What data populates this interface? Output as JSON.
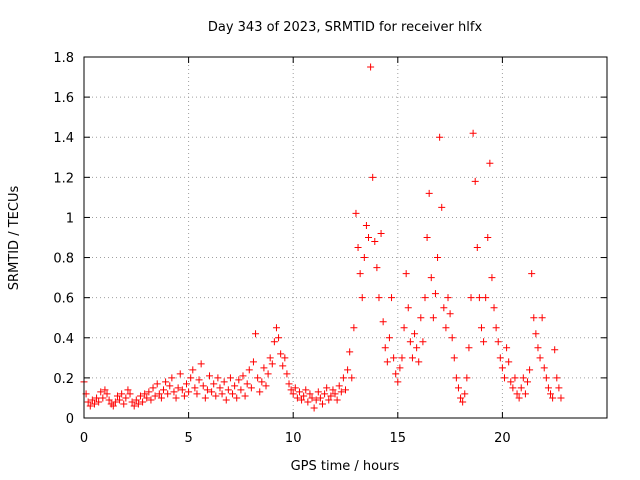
{
  "chart_data": {
    "type": "scatter",
    "title": "Day 343 of 2023, SRMTID for receiver hlfx",
    "xlabel": "GPS time / hours",
    "ylabel": "SRMTID / TECUs",
    "xlim": [
      0,
      25
    ],
    "ylim": [
      0,
      1.8
    ],
    "xticks": [
      0,
      5,
      10,
      15,
      20
    ],
    "xtick_labels": [
      "0",
      "5",
      "10",
      "15",
      "20"
    ],
    "yticks": [
      0,
      0.2,
      0.4,
      0.6,
      0.8,
      1,
      1.2,
      1.4,
      1.6,
      1.8
    ],
    "ytick_labels": [
      "0",
      "0.2",
      "0.4",
      "0.6",
      "0.8",
      "1",
      "1.2",
      "1.4",
      "1.6",
      "1.8"
    ],
    "grid": true,
    "marker": "+",
    "color": "#ff0000",
    "series": [
      {
        "name": "SRMTID",
        "points": [
          [
            0.0,
            0.18
          ],
          [
            0.1,
            0.12
          ],
          [
            0.2,
            0.08
          ],
          [
            0.3,
            0.06
          ],
          [
            0.4,
            0.09
          ],
          [
            0.5,
            0.07
          ],
          [
            0.6,
            0.1
          ],
          [
            0.7,
            0.08
          ],
          [
            0.8,
            0.13
          ],
          [
            0.9,
            0.1
          ],
          [
            1.0,
            0.14
          ],
          [
            1.1,
            0.12
          ],
          [
            1.2,
            0.09
          ],
          [
            1.3,
            0.07
          ],
          [
            1.4,
            0.06
          ],
          [
            1.5,
            0.08
          ],
          [
            1.6,
            0.11
          ],
          [
            1.7,
            0.09
          ],
          [
            1.8,
            0.12
          ],
          [
            1.9,
            0.07
          ],
          [
            2.0,
            0.1
          ],
          [
            2.1,
            0.14
          ],
          [
            2.2,
            0.12
          ],
          [
            2.3,
            0.08
          ],
          [
            2.4,
            0.06
          ],
          [
            2.5,
            0.09
          ],
          [
            2.6,
            0.07
          ],
          [
            2.7,
            0.11
          ],
          [
            2.8,
            0.08
          ],
          [
            2.9,
            0.12
          ],
          [
            3.0,
            0.1
          ],
          [
            3.1,
            0.13
          ],
          [
            3.2,
            0.09
          ],
          [
            3.3,
            0.15
          ],
          [
            3.4,
            0.11
          ],
          [
            3.5,
            0.17
          ],
          [
            3.6,
            0.12
          ],
          [
            3.7,
            0.1
          ],
          [
            3.8,
            0.14
          ],
          [
            3.9,
            0.18
          ],
          [
            4.0,
            0.12
          ],
          [
            4.1,
            0.16
          ],
          [
            4.2,
            0.2
          ],
          [
            4.3,
            0.13
          ],
          [
            4.4,
            0.1
          ],
          [
            4.5,
            0.15
          ],
          [
            4.6,
            0.22
          ],
          [
            4.7,
            0.14
          ],
          [
            4.8,
            0.11
          ],
          [
            4.9,
            0.17
          ],
          [
            5.0,
            0.13
          ],
          [
            5.1,
            0.2
          ],
          [
            5.2,
            0.24
          ],
          [
            5.3,
            0.15
          ],
          [
            5.4,
            0.12
          ],
          [
            5.5,
            0.19
          ],
          [
            5.6,
            0.27
          ],
          [
            5.7,
            0.16
          ],
          [
            5.8,
            0.1
          ],
          [
            5.9,
            0.14
          ],
          [
            6.0,
            0.21
          ],
          [
            6.1,
            0.13
          ],
          [
            6.2,
            0.17
          ],
          [
            6.3,
            0.11
          ],
          [
            6.4,
            0.2
          ],
          [
            6.5,
            0.15
          ],
          [
            6.6,
            0.12
          ],
          [
            6.7,
            0.18
          ],
          [
            6.8,
            0.09
          ],
          [
            6.9,
            0.14
          ],
          [
            7.0,
            0.2
          ],
          [
            7.1,
            0.12
          ],
          [
            7.2,
            0.16
          ],
          [
            7.3,
            0.1
          ],
          [
            7.4,
            0.19
          ],
          [
            7.5,
            0.14
          ],
          [
            7.6,
            0.21
          ],
          [
            7.7,
            0.11
          ],
          [
            7.8,
            0.17
          ],
          [
            7.9,
            0.24
          ],
          [
            8.0,
            0.15
          ],
          [
            8.1,
            0.28
          ],
          [
            8.2,
            0.42
          ],
          [
            8.3,
            0.2
          ],
          [
            8.4,
            0.13
          ],
          [
            8.5,
            0.18
          ],
          [
            8.6,
            0.25
          ],
          [
            8.7,
            0.16
          ],
          [
            8.8,
            0.22
          ],
          [
            8.9,
            0.3
          ],
          [
            9.0,
            0.27
          ],
          [
            9.1,
            0.38
          ],
          [
            9.2,
            0.45
          ],
          [
            9.3,
            0.4
          ],
          [
            9.4,
            0.32
          ],
          [
            9.5,
            0.26
          ],
          [
            9.6,
            0.3
          ],
          [
            9.7,
            0.22
          ],
          [
            9.8,
            0.17
          ],
          [
            9.9,
            0.14
          ],
          [
            10.0,
            0.12
          ],
          [
            10.1,
            0.15
          ],
          [
            10.2,
            0.1
          ],
          [
            10.3,
            0.13
          ],
          [
            10.4,
            0.09
          ],
          [
            10.5,
            0.11
          ],
          [
            10.6,
            0.14
          ],
          [
            10.7,
            0.08
          ],
          [
            10.8,
            0.12
          ],
          [
            10.9,
            0.1
          ],
          [
            11.0,
            0.05
          ],
          [
            11.1,
            0.09
          ],
          [
            11.2,
            0.13
          ],
          [
            11.3,
            0.1
          ],
          [
            11.4,
            0.07
          ],
          [
            11.5,
            0.12
          ],
          [
            11.6,
            0.15
          ],
          [
            11.7,
            0.09
          ],
          [
            11.8,
            0.11
          ],
          [
            11.9,
            0.14
          ],
          [
            12.0,
            0.12
          ],
          [
            12.1,
            0.09
          ],
          [
            12.2,
            0.16
          ],
          [
            12.3,
            0.13
          ],
          [
            12.4,
            0.2
          ],
          [
            12.5,
            0.14
          ],
          [
            12.6,
            0.24
          ],
          [
            12.7,
            0.33
          ],
          [
            12.8,
            0.2
          ],
          [
            12.9,
            0.45
          ],
          [
            13.0,
            1.02
          ],
          [
            13.1,
            0.85
          ],
          [
            13.2,
            0.72
          ],
          [
            13.3,
            0.6
          ],
          [
            13.4,
            0.8
          ],
          [
            13.5,
            0.96
          ],
          [
            13.6,
            0.9
          ],
          [
            13.7,
            1.75
          ],
          [
            13.8,
            1.2
          ],
          [
            13.9,
            0.88
          ],
          [
            14.0,
            0.75
          ],
          [
            14.1,
            0.6
          ],
          [
            14.2,
            0.92
          ],
          [
            14.3,
            0.48
          ],
          [
            14.4,
            0.35
          ],
          [
            14.5,
            0.28
          ],
          [
            14.6,
            0.4
          ],
          [
            14.7,
            0.6
          ],
          [
            14.8,
            0.3
          ],
          [
            14.9,
            0.22
          ],
          [
            15.0,
            0.18
          ],
          [
            15.1,
            0.25
          ],
          [
            15.2,
            0.3
          ],
          [
            15.3,
            0.45
          ],
          [
            15.4,
            0.72
          ],
          [
            15.5,
            0.55
          ],
          [
            15.6,
            0.38
          ],
          [
            15.7,
            0.3
          ],
          [
            15.8,
            0.42
          ],
          [
            15.9,
            0.35
          ],
          [
            16.0,
            0.28
          ],
          [
            16.1,
            0.5
          ],
          [
            16.2,
            0.38
          ],
          [
            16.3,
            0.6
          ],
          [
            16.4,
            0.9
          ],
          [
            16.5,
            1.12
          ],
          [
            16.6,
            0.7
          ],
          [
            16.7,
            0.5
          ],
          [
            16.8,
            0.62
          ],
          [
            16.9,
            0.8
          ],
          [
            17.0,
            1.4
          ],
          [
            17.1,
            1.05
          ],
          [
            17.2,
            0.55
          ],
          [
            17.3,
            0.45
          ],
          [
            17.4,
            0.6
          ],
          [
            17.5,
            0.52
          ],
          [
            17.6,
            0.4
          ],
          [
            17.7,
            0.3
          ],
          [
            17.8,
            0.2
          ],
          [
            17.9,
            0.15
          ],
          [
            18.0,
            0.1
          ],
          [
            18.1,
            0.08
          ],
          [
            18.2,
            0.12
          ],
          [
            18.3,
            0.2
          ],
          [
            18.4,
            0.35
          ],
          [
            18.5,
            0.6
          ],
          [
            18.6,
            1.42
          ],
          [
            18.7,
            1.18
          ],
          [
            18.8,
            0.85
          ],
          [
            18.9,
            0.6
          ],
          [
            19.0,
            0.45
          ],
          [
            19.1,
            0.38
          ],
          [
            19.2,
            0.6
          ],
          [
            19.3,
            0.9
          ],
          [
            19.4,
            1.27
          ],
          [
            19.5,
            0.7
          ],
          [
            19.6,
            0.55
          ],
          [
            19.7,
            0.45
          ],
          [
            19.8,
            0.38
          ],
          [
            19.9,
            0.3
          ],
          [
            20.0,
            0.25
          ],
          [
            20.1,
            0.2
          ],
          [
            20.2,
            0.35
          ],
          [
            20.3,
            0.28
          ],
          [
            20.4,
            0.18
          ],
          [
            20.5,
            0.15
          ],
          [
            20.6,
            0.2
          ],
          [
            20.7,
            0.12
          ],
          [
            20.8,
            0.1
          ],
          [
            20.9,
            0.15
          ],
          [
            21.0,
            0.2
          ],
          [
            21.1,
            0.12
          ],
          [
            21.2,
            0.18
          ],
          [
            21.3,
            0.24
          ],
          [
            21.4,
            0.72
          ],
          [
            21.5,
            0.5
          ],
          [
            21.6,
            0.42
          ],
          [
            21.7,
            0.35
          ],
          [
            21.8,
            0.3
          ],
          [
            21.9,
            0.5
          ],
          [
            22.0,
            0.25
          ],
          [
            22.1,
            0.2
          ],
          [
            22.2,
            0.15
          ],
          [
            22.3,
            0.12
          ],
          [
            22.4,
            0.1
          ],
          [
            22.5,
            0.34
          ],
          [
            22.6,
            0.2
          ],
          [
            22.7,
            0.15
          ],
          [
            22.8,
            0.1
          ]
        ]
      }
    ]
  }
}
